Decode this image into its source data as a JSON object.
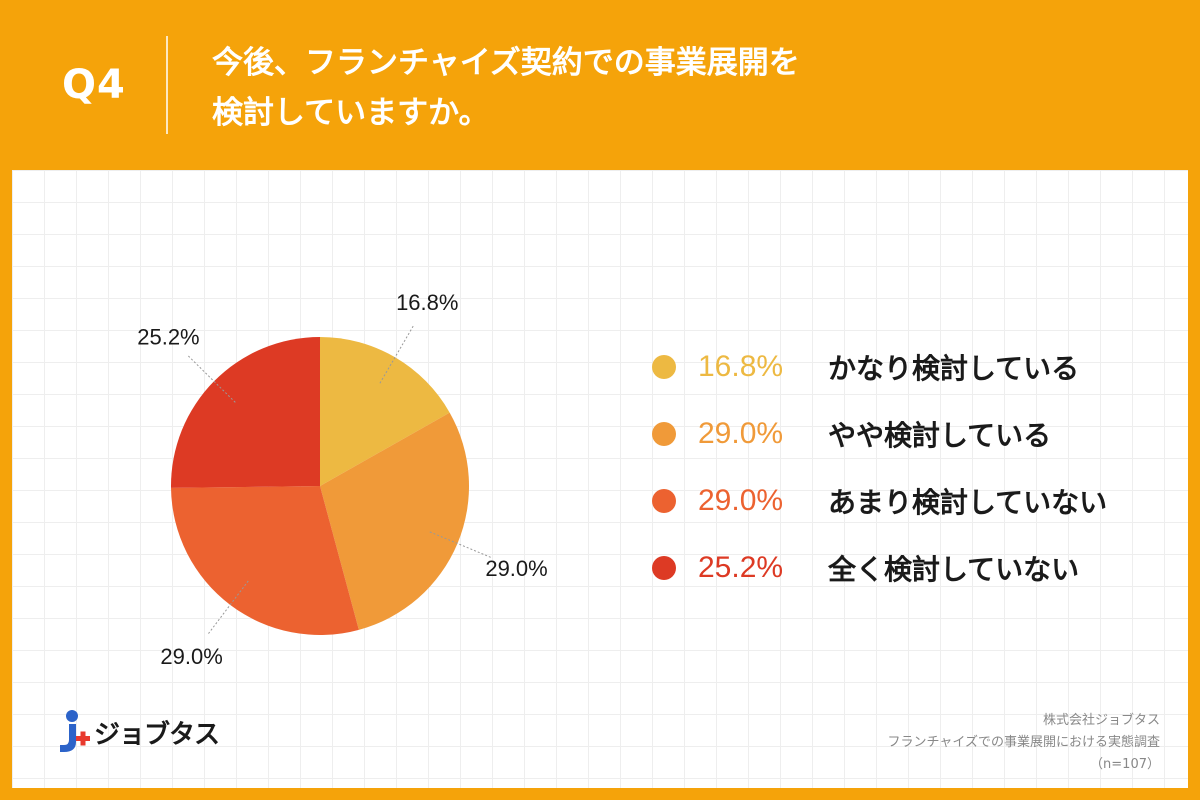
{
  "header": {
    "q_label": "Q4",
    "title_line1": "今後、フランチャイズ契約での事業展開を",
    "title_line2": "検討していますか。"
  },
  "chart_data": {
    "type": "pie",
    "categories": [
      "かなり検討している",
      "やや検討している",
      "あまり検討していない",
      "全く検討していない"
    ],
    "values": [
      16.8,
      29.0,
      29.0,
      25.2
    ],
    "value_labels": [
      "16.8%",
      "29.0%",
      "29.0%",
      "25.2%"
    ],
    "colors": [
      "#EDB942",
      "#F09A39",
      "#EC6230",
      "#DD3A24"
    ],
    "legend_position": "right",
    "start_angle": "12 o'clock, clockwise"
  },
  "logo": {
    "text": "ジョブタス"
  },
  "footer": {
    "company": "株式会社ジョブタス",
    "survey": "フランチャイズでの事業展開における実態調査",
    "sample": "（n=107）"
  }
}
